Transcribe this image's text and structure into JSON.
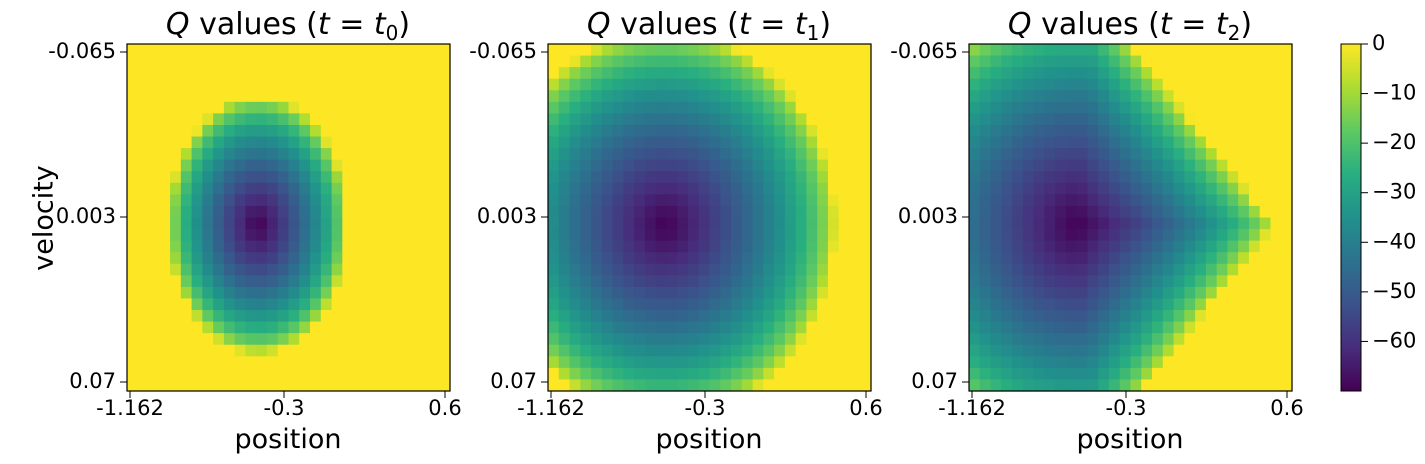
{
  "figure": {
    "ylabel": "velocity",
    "colormap": [
      "#440154",
      "#472d7b",
      "#3b528b",
      "#2c728e",
      "#21918c",
      "#28ae80",
      "#5ec962",
      "#addc30",
      "#fde725"
    ]
  },
  "panels": [
    {
      "title_prefix": "values (",
      "title_sub": "0"
    },
    {
      "title_prefix": "values (",
      "title_sub": "1"
    },
    {
      "title_prefix": "values (",
      "title_sub": "2"
    }
  ],
  "title_parts": {
    "q": "Q",
    "t": "t",
    "eq": " = ",
    "close": ")"
  },
  "chart_data": [
    {
      "type": "heatmap",
      "title": "Q values (t = t0)",
      "xlabel": "position",
      "ylabel": "velocity",
      "x_ticks": [
        "-1.162",
        "-0.3",
        "0.6"
      ],
      "y_ticks": [
        "-0.065",
        "0.003",
        "0.07"
      ],
      "xlim": [
        -1.2,
        0.6
      ],
      "ylim": [
        -0.07,
        0.07
      ],
      "grid": [
        30,
        30
      ],
      "shape": "disk",
      "center": [
        -0.47,
        0.003
      ],
      "radius": [
        0.5,
        0.052
      ],
      "min_value": -70
    },
    {
      "type": "heatmap",
      "title": "Q values (t = t1)",
      "xlabel": "position",
      "x_ticks": [
        "-1.162",
        "-0.3",
        "0.6"
      ],
      "y_ticks": [
        "-0.065",
        "0.003",
        "0.07"
      ],
      "xlim": [
        -1.2,
        0.6
      ],
      "ylim": [
        -0.07,
        0.07
      ],
      "grid": [
        30,
        30
      ],
      "shape": "disk",
      "center": [
        -0.55,
        0.003
      ],
      "radius": [
        0.95,
        0.078
      ],
      "min_value": -70
    },
    {
      "type": "heatmap",
      "title": "Q values (t = t2)",
      "xlabel": "position",
      "x_ticks": [
        "-1.162",
        "-0.3",
        "0.6"
      ],
      "y_ticks": [
        "-0.065",
        "0.003",
        "0.07"
      ],
      "xlim": [
        -1.2,
        0.6
      ],
      "ylim": [
        -0.07,
        0.07
      ],
      "grid": [
        30,
        30
      ],
      "shape": "wedge",
      "center": [
        -0.6,
        0.003
      ],
      "radius": [
        1.1,
        0.09
      ],
      "min_value": -70
    }
  ],
  "colorbar": {
    "ticks": [
      "0",
      "−10",
      "−20",
      "−30",
      "−40",
      "−50",
      "−60"
    ],
    "tick_values": [
      0,
      -10,
      -20,
      -30,
      -40,
      -50,
      -60
    ],
    "range": [
      -70,
      0
    ]
  }
}
